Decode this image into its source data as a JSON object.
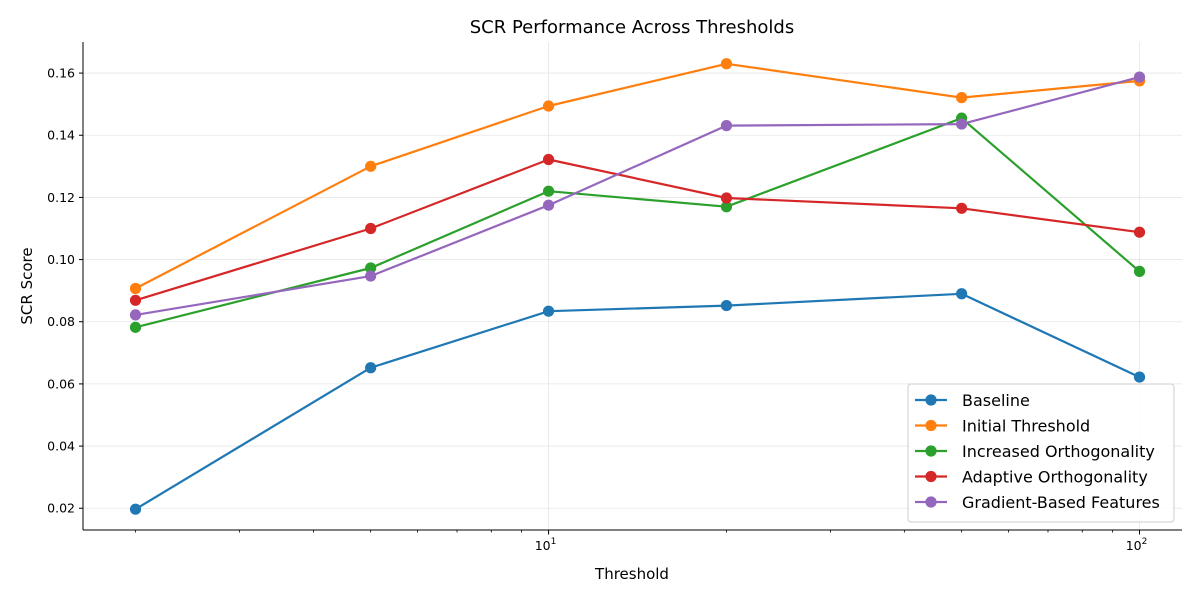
{
  "chart_data": {
    "type": "line",
    "title": "SCR Performance Across Thresholds",
    "xlabel": "Threshold",
    "ylabel": "SCR Score",
    "xscale": "log",
    "xlim": [
      1.63,
      118
    ],
    "ylim": [
      0.013,
      0.17
    ],
    "grid": true,
    "legend_position": "bottom-right",
    "x": [
      2,
      5,
      10,
      20,
      50,
      100
    ],
    "x_tick_labels": [
      {
        "value": 10,
        "base": "10",
        "exp": "1"
      },
      {
        "value": 100,
        "base": "10",
        "exp": "2"
      }
    ],
    "x_minor_ticks": [
      2,
      3,
      4,
      5,
      6,
      7,
      8,
      9,
      20,
      30,
      40,
      50,
      60,
      70,
      80,
      90
    ],
    "y_ticks": [
      0.02,
      0.04,
      0.06,
      0.08,
      0.1,
      0.12,
      0.14,
      0.16
    ],
    "y_tick_labels": [
      "0.02",
      "0.04",
      "0.06",
      "0.08",
      "0.10",
      "0.12",
      "0.14",
      "0.16"
    ],
    "series": [
      {
        "name": "Baseline",
        "color": "#1f77b4",
        "values": [
          0.0197,
          0.0652,
          0.0834,
          0.0852,
          0.089,
          0.0622
        ]
      },
      {
        "name": "Initial Threshold",
        "color": "#ff7f0e",
        "values": [
          0.0907,
          0.13,
          0.1494,
          0.163,
          0.1521,
          0.1575
        ]
      },
      {
        "name": "Increased Orthogonality",
        "color": "#2ca02c",
        "values": [
          0.0782,
          0.0973,
          0.122,
          0.117,
          0.1455,
          0.0962
        ]
      },
      {
        "name": "Adaptive Orthogonality",
        "color": "#d62728",
        "values": [
          0.0869,
          0.11,
          0.1322,
          0.1198,
          0.1165,
          0.1088
        ]
      },
      {
        "name": "Gradient-Based Features",
        "color": "#9467bd",
        "values": [
          0.0822,
          0.0947,
          0.1175,
          0.1431,
          0.1436,
          0.1587
        ]
      }
    ]
  }
}
